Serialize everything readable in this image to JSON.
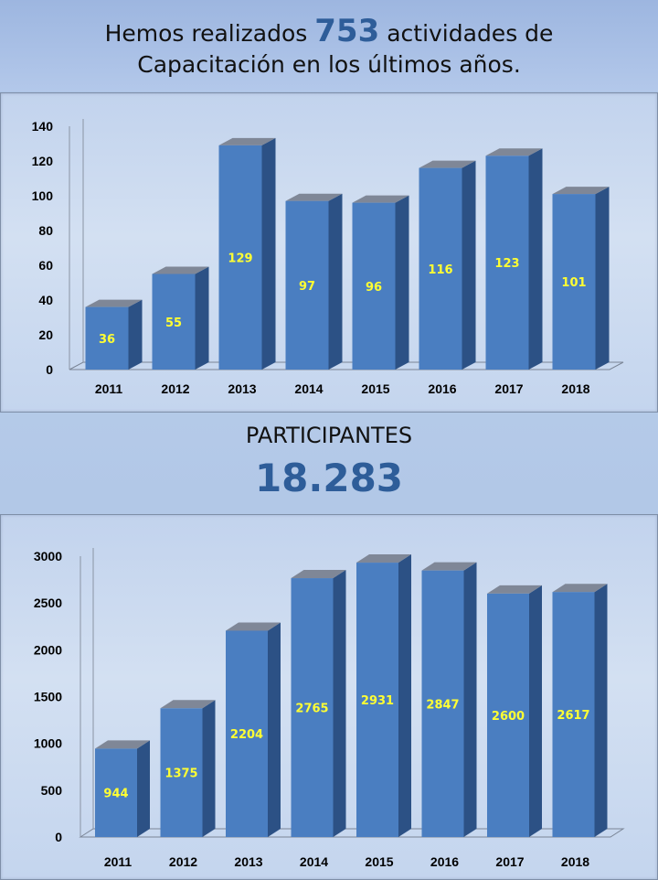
{
  "header": {
    "line1_pre": "Hemos realizados ",
    "line1_num": "753",
    "line1_post": " actividades de",
    "line2": "Capacitación en los últimos años."
  },
  "participants": {
    "label": "PARTICIPANTES",
    "total": "18.283"
  },
  "colors": {
    "bar_front": "#4a7ec1",
    "bar_side": "#2c5185",
    "bar_top": "#7f8797",
    "data_label": "#ffff33",
    "accent_text": "#2e5d99"
  },
  "chart_data": [
    {
      "type": "bar",
      "title": "",
      "xlabel": "",
      "ylabel": "",
      "categories": [
        "2011",
        "2012",
        "2013",
        "2014",
        "2015",
        "2016",
        "2017",
        "2018"
      ],
      "values": [
        36,
        55,
        129,
        97,
        96,
        116,
        123,
        101
      ],
      "ylim": [
        0,
        140
      ],
      "yticks": [
        "0",
        "20",
        "40",
        "60",
        "80",
        "100",
        "120",
        "140"
      ],
      "grid": false,
      "style": "3d"
    },
    {
      "type": "bar",
      "title": "",
      "xlabel": "",
      "ylabel": "",
      "categories": [
        "2011",
        "2012",
        "2013",
        "2014",
        "2015",
        "2016",
        "2017",
        "2018"
      ],
      "values": [
        944,
        1375,
        2204,
        2765,
        2931,
        2847,
        2600,
        2617
      ],
      "ylim": [
        0,
        3000
      ],
      "yticks": [
        "0",
        "500",
        "1000",
        "1500",
        "2000",
        "2500",
        "3000"
      ],
      "grid": false,
      "style": "3d"
    }
  ]
}
